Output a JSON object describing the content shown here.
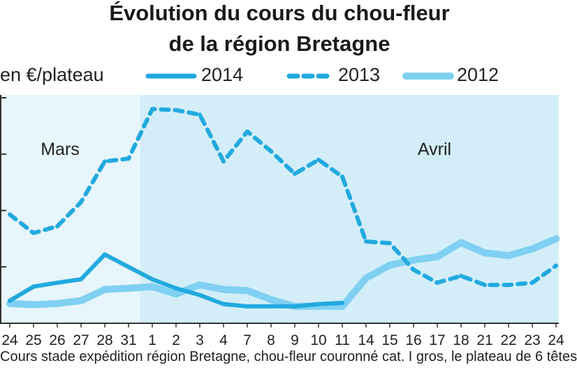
{
  "title_line1": "Évolution du cours du chou-fleur",
  "title_line2": "de la région Bretagne",
  "footnote": "Cours stade expédition région Bretagne, chou-fleur couronné cat. I gros, le plateau de 6 têtes",
  "colors": {
    "s2014": "#22a9df",
    "s2013": "#22a9df",
    "s2012": "#7fd0f2",
    "band_mars": "#e7f5fc",
    "band_avril": "#d3eef9",
    "axis": "#333333"
  },
  "chart_data": {
    "type": "line",
    "ylabel": "en €/plateau",
    "xlabel": "",
    "categories": [
      "24",
      "25",
      "26",
      "27",
      "28",
      "31",
      "1",
      "2",
      "3",
      "4",
      "7",
      "8",
      "9",
      "10",
      "11",
      "14",
      "15",
      "16",
      "17",
      "18",
      "21",
      "22",
      "23",
      "24"
    ],
    "ylim": [
      0,
      4
    ],
    "grid": false,
    "legend": "top",
    "periods": [
      {
        "label": "Mars",
        "from": 0,
        "to": 5
      },
      {
        "label": "Avril",
        "from": 6,
        "to": 23
      }
    ],
    "series": [
      {
        "name": "2014",
        "style": "solid",
        "values": [
          0.4,
          0.65,
          0.72,
          0.78,
          1.22,
          1.0,
          0.78,
          0.62,
          0.5,
          0.34,
          0.3,
          0.3,
          0.3,
          0.34,
          0.36,
          null,
          null,
          null,
          null,
          null,
          null,
          null,
          null,
          null
        ]
      },
      {
        "name": "2013",
        "style": "dashed",
        "values": [
          1.93,
          1.6,
          1.72,
          2.15,
          2.87,
          2.92,
          3.8,
          3.78,
          3.7,
          2.87,
          3.4,
          3.05,
          2.65,
          2.9,
          2.6,
          1.45,
          1.42,
          0.95,
          0.72,
          0.84,
          0.68,
          0.68,
          0.72,
          1.02
        ]
      },
      {
        "name": "2012",
        "style": "thick",
        "values": [
          0.35,
          0.33,
          0.35,
          0.4,
          0.6,
          0.62,
          0.65,
          0.52,
          0.68,
          0.6,
          0.58,
          0.42,
          0.3,
          0.3,
          0.3,
          0.8,
          1.03,
          1.12,
          1.18,
          1.43,
          1.25,
          1.2,
          1.32,
          1.5
        ]
      }
    ]
  }
}
